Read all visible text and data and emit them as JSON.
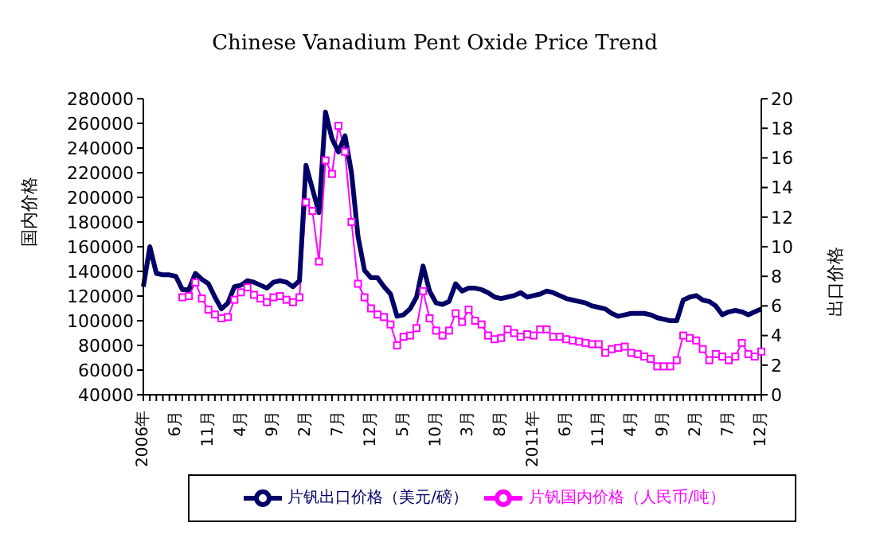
{
  "chart_data": {
    "type": "line",
    "title": "Chinese Vanadium Pent Oxide Price Trend",
    "ylabel": "国内价格",
    "y2label": "出口价格",
    "categories": [
      "2006年",
      null,
      null,
      null,
      null,
      "6月",
      null,
      null,
      null,
      null,
      "11月",
      null,
      null,
      null,
      null,
      "4月",
      null,
      null,
      null,
      null,
      "9月",
      null,
      null,
      null,
      null,
      "2月",
      null,
      null,
      null,
      null,
      "7月",
      null,
      null,
      null,
      null,
      "12月",
      null,
      null,
      null,
      null,
      "5月",
      null,
      null,
      null,
      null,
      "10月",
      null,
      null,
      null,
      null,
      "3月",
      null,
      null,
      null,
      null,
      "8月",
      null,
      null,
      null,
      null,
      "2011年",
      null,
      null,
      null,
      null,
      "6月",
      null,
      null,
      null,
      null,
      "11月",
      null,
      null,
      null,
      null,
      "4月",
      null,
      null,
      null,
      null,
      "9月",
      null,
      null,
      null,
      null,
      "2月",
      null,
      null,
      null,
      null,
      "7月",
      null,
      null,
      null,
      null,
      "12月"
    ],
    "series": [
      {
        "name": "片钒国内价格（人民币/吨）",
        "color": "#ff00ff",
        "marker": "square",
        "axis": "y",
        "values": [
          null,
          null,
          null,
          null,
          null,
          null,
          119000,
          120000,
          131000,
          118000,
          109000,
          105000,
          102000,
          103000,
          117000,
          123000,
          127000,
          121000,
          118000,
          115000,
          119000,
          120000,
          117000,
          115000,
          119000,
          196000,
          189000,
          148000,
          230000,
          219000,
          258000,
          237000,
          180000,
          130000,
          119000,
          110000,
          105000,
          103000,
          97000,
          80000,
          87000,
          88000,
          94000,
          124000,
          102000,
          92000,
          88000,
          92000,
          106000,
          99000,
          109000,
          100000,
          97000,
          88000,
          85000,
          86000,
          93000,
          90000,
          87000,
          89000,
          88000,
          93000,
          93000,
          87000,
          87000,
          85000,
          84000,
          83000,
          82000,
          81000,
          81000,
          74000,
          77000,
          78000,
          79000,
          74000,
          73000,
          71000,
          69000,
          63000,
          63000,
          63000,
          68000,
          88000,
          86000,
          84000,
          77000,
          68000,
          73000,
          71000,
          68000,
          71000,
          82000,
          73000,
          71000,
          75000
        ]
      },
      {
        "name": "片钒出口价格（美元/磅）",
        "color": "#000066",
        "marker": "none",
        "axis": "y2",
        "values": [
          7.3,
          10.0,
          8.2,
          8.1,
          8.1,
          8.0,
          7.1,
          7.1,
          8.2,
          7.8,
          7.5,
          6.6,
          5.8,
          6.2,
          7.3,
          7.4,
          7.7,
          7.6,
          7.4,
          7.2,
          7.6,
          7.7,
          7.6,
          7.3,
          7.7,
          15.5,
          13.9,
          12.3,
          19.1,
          17.3,
          16.4,
          17.5,
          15.0,
          10.7,
          8.4,
          7.9,
          7.9,
          7.3,
          6.8,
          5.3,
          5.4,
          5.8,
          6.6,
          8.7,
          7.0,
          6.2,
          6.1,
          6.3,
          7.5,
          7.0,
          7.2,
          7.2,
          7.1,
          6.9,
          6.6,
          6.5,
          6.6,
          6.7,
          6.9,
          6.6,
          6.7,
          6.8,
          7.0,
          6.9,
          6.7,
          6.5,
          6.4,
          6.3,
          6.2,
          6.0,
          5.9,
          5.8,
          5.5,
          5.3,
          5.4,
          5.5,
          5.5,
          5.5,
          5.4,
          5.2,
          5.1,
          5.0,
          5.0,
          6.4,
          6.6,
          6.7,
          6.4,
          6.3,
          6.0,
          5.4,
          5.6,
          5.7,
          5.6,
          5.4,
          5.6,
          5.8
        ]
      }
    ],
    "ylim": [
      40000,
      280000
    ],
    "yticks": [
      40000,
      60000,
      80000,
      100000,
      120000,
      140000,
      160000,
      180000,
      200000,
      220000,
      240000,
      260000,
      280000
    ],
    "y2lim": [
      0,
      20
    ],
    "y2ticks": [
      0,
      2,
      4,
      6,
      8,
      10,
      12,
      14,
      16,
      18,
      20
    ],
    "grid": false,
    "legend": "bottom"
  }
}
